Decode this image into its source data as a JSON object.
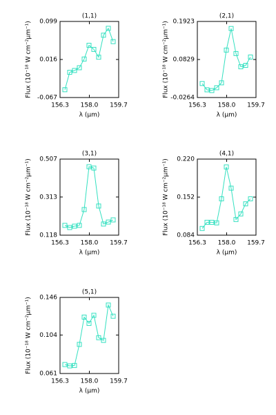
{
  "chart_data": [
    {
      "type": "line",
      "title": "(1,1)",
      "xlabel": "λ (μm)",
      "ylabel": "Flux (10⁻¹⁸ W cm⁻²μm⁻¹)",
      "x": [
        156.58,
        156.86,
        157.14,
        157.42,
        157.7,
        157.98,
        158.26,
        158.54,
        158.82,
        159.1,
        159.38
      ],
      "series": [
        {
          "color": "#33e0c0",
          "values": [
            -0.05,
            -0.012,
            -0.008,
            -0.002,
            0.017,
            0.047,
            0.038,
            0.021,
            0.069,
            0.084,
            0.055
          ]
        }
      ],
      "xlim": [
        156.3,
        159.7
      ],
      "xticks": [
        156.3,
        {
          "value": 158.0,
          "label": "158.0"
        },
        159.7
      ],
      "ylim": [
        -0.067,
        0.099
      ],
      "yticks": [
        -0.067,
        0.016,
        0.099
      ]
    },
    {
      "type": "line",
      "title": "(2,1)",
      "xlabel": "λ (μm)",
      "ylabel": "Flux (10⁻¹⁸ W cm⁻²μm⁻¹)",
      "x": [
        156.58,
        156.86,
        157.14,
        157.42,
        157.7,
        157.98,
        158.26,
        158.54,
        158.82,
        159.1,
        159.38
      ],
      "series": [
        {
          "color": "#33e0c0",
          "values": [
            0.0138,
            -0.0043,
            -0.0063,
            0.0017,
            0.0158,
            0.11,
            0.172,
            0.1,
            0.062,
            0.066,
            0.09
          ]
        }
      ],
      "xlim": [
        156.3,
        159.7
      ],
      "xticks": [
        156.3,
        {
          "value": 158.0,
          "label": "158.0"
        },
        159.7
      ],
      "ylim": [
        -0.0264,
        0.1923
      ],
      "yticks": [
        -0.0264,
        0.0829,
        0.1923
      ]
    },
    {
      "type": "line",
      "title": "(3,1)",
      "xlabel": "λ (μm)",
      "ylabel": "Flux (10⁻¹⁸ W cm⁻²μm⁻¹)",
      "x": [
        156.58,
        156.86,
        157.14,
        157.42,
        157.7,
        157.98,
        158.26,
        158.54,
        158.82,
        159.1,
        159.38
      ],
      "series": [
        {
          "color": "#33e0c0",
          "values": [
            0.168,
            0.157,
            0.164,
            0.168,
            0.249,
            0.468,
            0.461,
            0.267,
            0.175,
            0.185,
            0.196
          ]
        }
      ],
      "xlim": [
        156.3,
        159.7
      ],
      "xticks": [
        156.3,
        {
          "value": 158.0,
          "label": "158.0"
        },
        159.7
      ],
      "ylim": [
        0.118,
        0.507
      ],
      "yticks": [
        0.118,
        0.313,
        0.507
      ]
    },
    {
      "type": "line",
      "title": "(4,1)",
      "xlabel": "λ (μm)",
      "ylabel": "Flux (10⁻¹⁸ W cm⁻²μm⁻¹)",
      "x": [
        156.58,
        156.86,
        157.14,
        157.42,
        157.7,
        157.98,
        158.26,
        158.54,
        158.82,
        159.1,
        159.38
      ],
      "series": [
        {
          "color": "#33e0c0",
          "values": [
            0.096,
            0.107,
            0.107,
            0.106,
            0.149,
            0.206,
            0.168,
            0.112,
            0.122,
            0.14,
            0.149
          ]
        }
      ],
      "xlim": [
        156.3,
        159.7
      ],
      "xticks": [
        156.3,
        {
          "value": 158.0,
          "label": "158.0"
        },
        159.7
      ],
      "ylim": [
        0.084,
        0.22
      ],
      "yticks": [
        0.084,
        0.152,
        {
          "value": 0.22,
          "label": "0.220"
        }
      ]
    },
    {
      "type": "line",
      "title": "(5,1)",
      "xlabel": "λ (μm)",
      "ylabel": "Flux (10⁻¹⁸ W cm⁻²μm⁻¹)",
      "x": [
        156.58,
        156.86,
        157.14,
        157.42,
        157.7,
        157.98,
        158.26,
        158.54,
        158.82,
        159.1,
        159.38
      ],
      "series": [
        {
          "color": "#33e0c0",
          "values": [
            0.071,
            0.0695,
            0.07,
            0.0935,
            0.124,
            0.117,
            0.126,
            0.101,
            0.098,
            0.1375,
            0.125
          ]
        }
      ],
      "xlim": [
        156.3,
        159.7
      ],
      "xticks": [
        156.3,
        {
          "value": 158.0,
          "label": "158.0"
        },
        159.7
      ],
      "ylim": [
        0.061,
        0.146
      ],
      "yticks": [
        0.061,
        0.104,
        0.146
      ]
    }
  ]
}
